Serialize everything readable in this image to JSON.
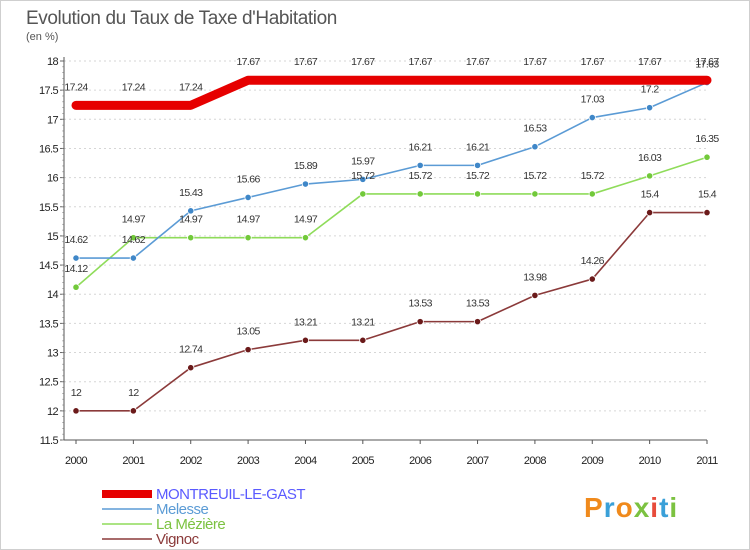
{
  "title": "Evolution du Taux de Taxe d'Habitation",
  "subtitle": "(en %)",
  "logo": {
    "text": "Proxiti",
    "colors": [
      "#f08a1c",
      "#3aa0d8",
      "#f08a1c",
      "#7cc241",
      "#e74c3c",
      "#3aa0d8",
      "#7cc241"
    ]
  },
  "chart_data": {
    "type": "line",
    "title": "Evolution du Taux de Taxe d'Habitation",
    "subtitle": "(en %)",
    "xlabel": "",
    "ylabel": "",
    "x": [
      "2000",
      "2001",
      "2002",
      "2003",
      "2004",
      "2005",
      "2006",
      "2007",
      "2008",
      "2009",
      "2010",
      "2011"
    ],
    "ylim": [
      11.5,
      18
    ],
    "yticks": [
      "11.5",
      "12",
      "12.5",
      "13",
      "13.5",
      "14",
      "14.5",
      "15",
      "15.5",
      "16",
      "16.5",
      "17",
      "17.5",
      "18"
    ],
    "grid": "horizontal-dashed",
    "legend_position": "bottom-left",
    "series": [
      {
        "name": "MONTREUIL-LE-GAST",
        "color": "#e60000",
        "legend_color": "#5a5aff",
        "marker": "none",
        "values": [
          17.24,
          17.24,
          17.24,
          17.67,
          17.67,
          17.67,
          17.67,
          17.67,
          17.67,
          17.67,
          17.67,
          17.67
        ],
        "labels": [
          "17.24",
          "17.24",
          "17.24",
          "17.67",
          "17.67",
          "17.67",
          "17.67",
          "17.67",
          "17.67",
          "17.67",
          "17.67",
          "17.67"
        ]
      },
      {
        "name": "Melesse",
        "color": "#5b9bd5",
        "legend_color": "#5b9bd5",
        "marker": "#3f87c8",
        "values": [
          14.62,
          14.62,
          15.43,
          15.66,
          15.89,
          15.97,
          16.21,
          16.21,
          16.53,
          17.03,
          17.2,
          17.63
        ],
        "labels": [
          "14.62",
          "14.62",
          "15.43",
          "15.66",
          "15.89",
          "15.97",
          "16.21",
          "16.21",
          "16.53",
          "17.03",
          "17.2",
          "17.63"
        ]
      },
      {
        "name": "La Mézière",
        "color": "#8fdc5a",
        "legend_color": "#7cc241",
        "marker": "#72c93a",
        "values": [
          14.12,
          14.97,
          14.97,
          14.97,
          14.97,
          15.72,
          15.72,
          15.72,
          15.72,
          15.72,
          16.03,
          16.35
        ],
        "labels": [
          "14.12",
          "14.97",
          "14.97",
          "14.97",
          "14.97",
          "15.72",
          "15.72",
          "15.72",
          "15.72",
          "15.72",
          "16.03",
          "16.35"
        ]
      },
      {
        "name": "Vignoc",
        "color": "#8b3a3a",
        "legend_color": "#8b3a3a",
        "marker": "#6b1a1a",
        "values": [
          12,
          12,
          12.74,
          13.05,
          13.21,
          13.21,
          13.53,
          13.53,
          13.98,
          14.26,
          15.4,
          15.4
        ],
        "labels": [
          "12",
          "12",
          "12.74",
          "13.05",
          "13.21",
          "13.21",
          "13.53",
          "13.53",
          "13.98",
          "14.26",
          "15.4",
          "15.4"
        ]
      }
    ]
  }
}
